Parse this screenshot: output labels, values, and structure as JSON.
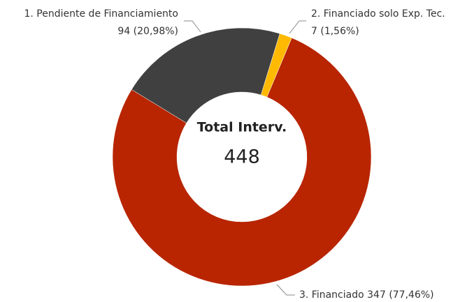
{
  "chart_data": {
    "type": "donut",
    "categories": [
      "1. Pendiente de Financiamiento",
      "2. Financiado solo Exp. Tec.",
      "3. Financiado"
    ],
    "values": [
      94,
      7,
      347
    ],
    "value_labels": [
      "94 (20,98%)",
      "7 (1,56%)",
      "347 (77,46%)"
    ],
    "colors": [
      "#404040",
      "#ffb900",
      "#b82500"
    ],
    "center_title": "Total Interv.",
    "center_value": 448
  }
}
